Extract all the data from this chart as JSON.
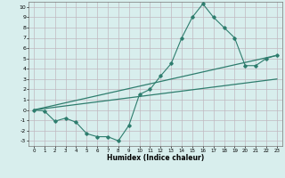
{
  "title": "",
  "xlabel": "Humidex (Indice chaleur)",
  "xlim": [
    -0.5,
    23.5
  ],
  "ylim": [
    -3.5,
    10.5
  ],
  "xticks": [
    0,
    1,
    2,
    3,
    4,
    5,
    6,
    7,
    8,
    9,
    10,
    11,
    12,
    13,
    14,
    15,
    16,
    17,
    18,
    19,
    20,
    21,
    22,
    23
  ],
  "yticks": [
    -3,
    -2,
    -1,
    0,
    1,
    2,
    3,
    4,
    5,
    6,
    7,
    8,
    9,
    10
  ],
  "bg_color": "#d8eeed",
  "grid_color": "#c0b8c0",
  "line_color": "#2e7d6e",
  "series1_x": [
    0,
    1,
    2,
    3,
    4,
    5,
    6,
    7,
    8,
    9,
    10,
    11,
    12,
    13,
    14,
    15,
    16,
    17,
    18,
    19,
    20,
    21,
    22,
    23
  ],
  "series1_y": [
    0,
    -0.1,
    -1.1,
    -0.8,
    -1.2,
    -2.3,
    -2.6,
    -2.6,
    -3.0,
    -1.5,
    1.5,
    2.0,
    3.3,
    4.5,
    7.0,
    9.0,
    10.3,
    9.0,
    8.0,
    7.0,
    4.3,
    4.3,
    5.0,
    5.3
  ],
  "series2_x": [
    0,
    23
  ],
  "series2_y": [
    0.0,
    5.3
  ],
  "series3_x": [
    0,
    23
  ],
  "series3_y": [
    0.0,
    3.0
  ]
}
